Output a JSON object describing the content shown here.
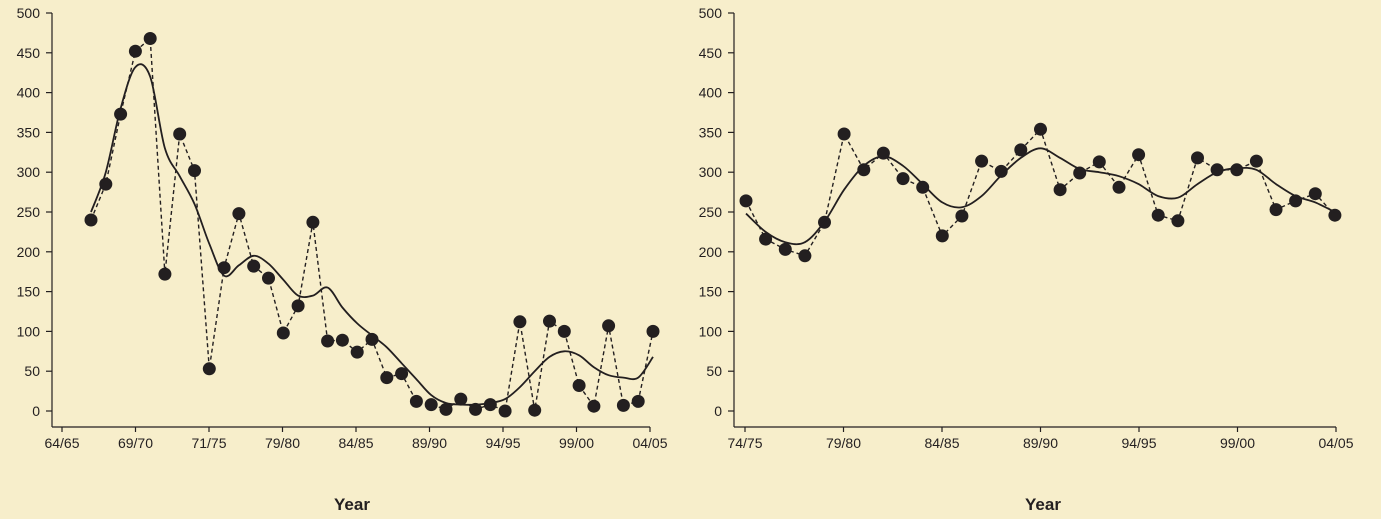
{
  "colors": {
    "background": "#f7eecb",
    "ink": "#231f20"
  },
  "chart_data": [
    {
      "type": "line",
      "xlabel": "Year",
      "ylabel": "",
      "ylim": [
        0,
        500
      ],
      "yticks": [
        "0",
        "50",
        "100",
        "150",
        "200",
        "250",
        "300",
        "350",
        "400",
        "450",
        "500"
      ],
      "xtick_labels": [
        "64/65",
        "69/70",
        "71/75",
        "79/80",
        "84/85",
        "89/90",
        "94/95",
        "99/00",
        "04/05"
      ],
      "grid": false,
      "series": [
        {
          "style": "dashed-with-markers",
          "values": [
            240,
            285,
            373,
            452,
            468,
            172,
            348,
            302,
            53,
            180,
            248,
            182,
            167,
            98,
            132,
            237,
            88,
            89,
            74,
            90,
            42,
            47,
            12,
            8,
            2,
            15,
            2,
            8,
            0,
            112,
            1,
            113,
            100,
            32,
            6,
            107,
            7,
            12,
            100
          ]
        },
        {
          "style": "smooth",
          "values": [
            250,
            300,
            380,
            432,
            420,
            330,
            295,
            260,
            210,
            170,
            183,
            195,
            185,
            165,
            145,
            145,
            155,
            130,
            110,
            95,
            80,
            60,
            40,
            20,
            10,
            8,
            8,
            10,
            15,
            30,
            50,
            68,
            75,
            70,
            55,
            45,
            42,
            42,
            68
          ]
        }
      ]
    },
    {
      "type": "line",
      "xlabel": "Year",
      "ylabel": "",
      "ylim": [
        0,
        500
      ],
      "yticks": [
        "0",
        "50",
        "100",
        "150",
        "200",
        "250",
        "300",
        "350",
        "400",
        "450",
        "500"
      ],
      "xtick_labels": [
        "74/75",
        "79/80",
        "84/85",
        "89/90",
        "94/95",
        "99/00",
        "04/05"
      ],
      "grid": false,
      "series": [
        {
          "style": "dashed-with-markers",
          "values": [
            264,
            216,
            203,
            195,
            237,
            348,
            303,
            324,
            292,
            281,
            220,
            245,
            314,
            301,
            328,
            354,
            278,
            299,
            313,
            281,
            322,
            246,
            239,
            318,
            303,
            303,
            314,
            253,
            264,
            273,
            246
          ]
        },
        {
          "style": "smooth",
          "values": [
            248,
            225,
            212,
            212,
            238,
            278,
            308,
            320,
            308,
            285,
            262,
            256,
            270,
            296,
            318,
            330,
            318,
            304,
            300,
            295,
            285,
            270,
            268,
            285,
            300,
            305,
            303,
            285,
            270,
            262,
            250
          ]
        }
      ]
    }
  ]
}
